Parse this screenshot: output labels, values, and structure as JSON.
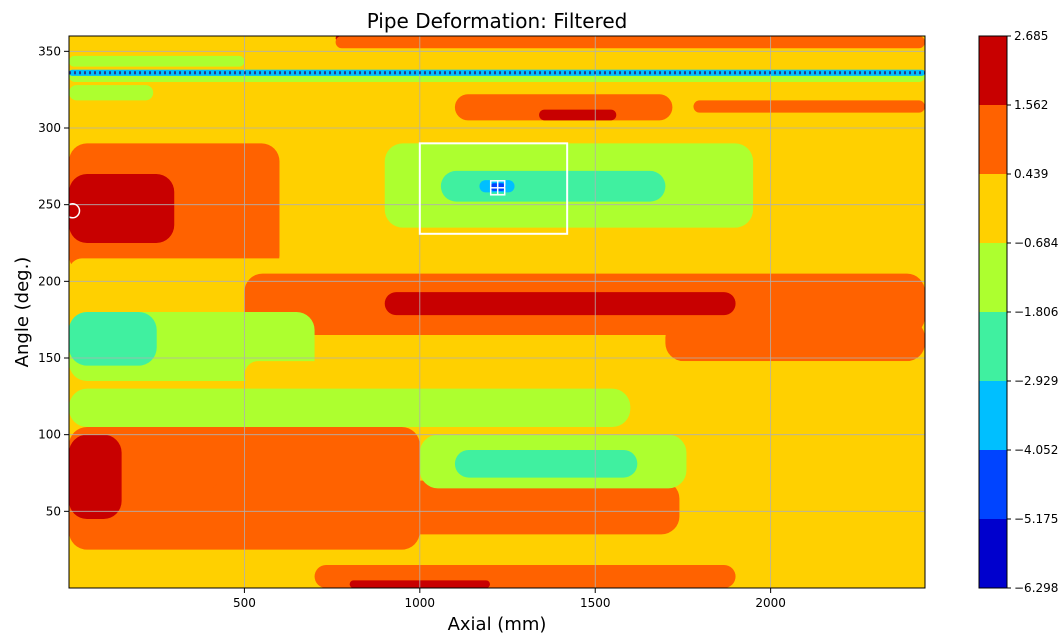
{
  "chart_data": {
    "type": "heatmap",
    "title": "Pipe Deformation: Filtered",
    "xlabel": "Axial (mm)",
    "ylabel": "Angle (deg.)",
    "xlim": [
      0,
      2440
    ],
    "ylim": [
      0,
      360
    ],
    "grid": true,
    "x_ticks": [
      500,
      1000,
      1500,
      2000
    ],
    "y_ticks": [
      50,
      100,
      150,
      200,
      250,
      300,
      350
    ],
    "colorbar": {
      "levels": [
        -6.298,
        -5.175,
        -4.052,
        -2.929,
        -1.806,
        -0.684,
        0.439,
        1.562,
        2.685
      ],
      "level_labels": [
        "−6.298",
        "−5.175",
        "−4.052",
        "−2.929",
        "−1.806",
        "−0.684",
        "0.439",
        "1.562",
        "2.685"
      ],
      "colors": [
        "#0000cd",
        "#0044ff",
        "#00bfff",
        "#40f0a0",
        "#adff2f",
        "#ffd000",
        "#ff6200",
        "#c80000"
      ]
    },
    "bands": [
      {
        "y": [
          350,
          360
        ],
        "x": [
          0,
          2440
        ],
        "level": 5
      },
      {
        "y": [
          357,
          360
        ],
        "x": [
          760,
          1080
        ],
        "level": 7
      },
      {
        "y": [
          352,
          360
        ],
        "x": [
          760,
          2440
        ],
        "level": 6
      },
      {
        "y": [
          340,
          347
        ],
        "x": [
          0,
          500
        ],
        "level": 4
      },
      {
        "y": [
          330,
          338
        ],
        "x": [
          0,
          2440
        ],
        "level": 4
      },
      {
        "y": [
          334,
          338
        ],
        "x": [
          0,
          2440
        ],
        "level": 2
      },
      {
        "y": [
          318,
          328
        ],
        "x": [
          0,
          240
        ],
        "level": 4
      },
      {
        "y": [
          305,
          322
        ],
        "x": [
          1100,
          1720
        ],
        "level": 6
      },
      {
        "y": [
          305,
          312
        ],
        "x": [
          1340,
          1560
        ],
        "level": 7
      },
      {
        "y": [
          310,
          318
        ],
        "x": [
          1780,
          2440
        ],
        "level": 6
      },
      {
        "y": [
          205,
          290
        ],
        "x": [
          0,
          600
        ],
        "level": 6
      },
      {
        "y": [
          225,
          270
        ],
        "x": [
          0,
          300
        ],
        "level": 7
      },
      {
        "y": [
          235,
          290
        ],
        "x": [
          900,
          1950
        ],
        "level": 4
      },
      {
        "y": [
          252,
          272
        ],
        "x": [
          1060,
          1700
        ],
        "level": 3
      },
      {
        "y": [
          258,
          266
        ],
        "x": [
          1170,
          1270
        ],
        "level": 2
      },
      {
        "y": [
          259,
          264
        ],
        "x": [
          1200,
          1245
        ],
        "level": 1
      },
      {
        "y": [
          198,
          215
        ],
        "x": [
          0,
          2440
        ],
        "level": 5
      },
      {
        "y": [
          165,
          205
        ],
        "x": [
          500,
          2440
        ],
        "level": 6
      },
      {
        "y": [
          178,
          193
        ],
        "x": [
          900,
          1900
        ],
        "level": 7
      },
      {
        "y": [
          135,
          180
        ],
        "x": [
          0,
          700
        ],
        "level": 4
      },
      {
        "y": [
          145,
          180
        ],
        "x": [
          0,
          250
        ],
        "level": 3
      },
      {
        "y": [
          148,
          175
        ],
        "x": [
          1700,
          2440
        ],
        "level": 6
      },
      {
        "y": [
          130,
          148
        ],
        "x": [
          500,
          2440
        ],
        "level": 5
      },
      {
        "y": [
          105,
          130
        ],
        "x": [
          0,
          1600
        ],
        "level": 4
      },
      {
        "y": [
          25,
          105
        ],
        "x": [
          0,
          1000
        ],
        "level": 6
      },
      {
        "y": [
          45,
          100
        ],
        "x": [
          0,
          150
        ],
        "level": 7
      },
      {
        "y": [
          35,
          70
        ],
        "x": [
          400,
          1740
        ],
        "level": 6
      },
      {
        "y": [
          65,
          100
        ],
        "x": [
          1000,
          1760
        ],
        "level": 4
      },
      {
        "y": [
          72,
          90
        ],
        "x": [
          1100,
          1620
        ],
        "level": 3
      },
      {
        "y": [
          25,
          50
        ],
        "x": [
          1760,
          2440
        ],
        "level": 5
      },
      {
        "y": [
          0,
          15
        ],
        "x": [
          700,
          1900
        ],
        "level": 6
      },
      {
        "y": [
          0,
          5
        ],
        "x": [
          800,
          1200
        ],
        "level": 7
      }
    ],
    "annotations": {
      "box": {
        "x": [
          1000,
          1420
        ],
        "y": [
          231,
          290
        ]
      },
      "crosshair": {
        "x": 1222,
        "y": 261
      },
      "circle": {
        "x": 10,
        "y": 246
      },
      "dotted_line": {
        "y": 336
      }
    }
  }
}
